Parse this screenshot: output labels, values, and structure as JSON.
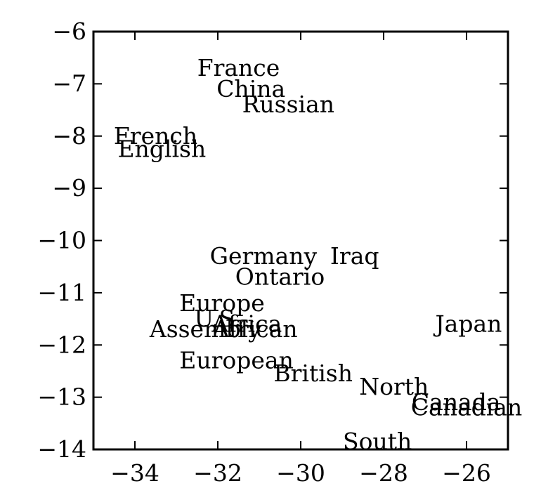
{
  "chart_data": {
    "type": "scatter",
    "title": "",
    "xlabel": "",
    "ylabel": "",
    "xlim": [
      -35,
      -25
    ],
    "ylim": [
      -14,
      -6
    ],
    "xticks": [
      -34,
      -32,
      -30,
      -28,
      -26
    ],
    "yticks": [
      -6,
      -7,
      -8,
      -9,
      -10,
      -11,
      -12,
      -13,
      -14
    ],
    "xtick_labels": [
      "−34",
      "−32",
      "−30",
      "−28",
      "−26"
    ],
    "ytick_labels": [
      "−6",
      "−7",
      "−8",
      "−9",
      "−10",
      "−11",
      "−12",
      "−13",
      "−14"
    ],
    "grid": false,
    "points": [
      {
        "label": "France",
        "x": -31.5,
        "y": -6.7
      },
      {
        "label": "China",
        "x": -31.2,
        "y": -7.1
      },
      {
        "label": "Russian",
        "x": -30.3,
        "y": -7.4
      },
      {
        "label": "French",
        "x": -33.5,
        "y": -8.0
      },
      {
        "label": "English",
        "x": -33.35,
        "y": -8.25
      },
      {
        "label": "Germany",
        "x": -30.9,
        "y": -10.3
      },
      {
        "label": "Iraq",
        "x": -28.7,
        "y": -10.3
      },
      {
        "label": "Ontario",
        "x": -30.5,
        "y": -10.7
      },
      {
        "label": "Europe",
        "x": -31.9,
        "y": -11.2
      },
      {
        "label": "U.S.",
        "x": -32.0,
        "y": -11.5
      },
      {
        "label": "Africa",
        "x": -31.3,
        "y": -11.6
      },
      {
        "label": "Assembly",
        "x": -32.3,
        "y": -11.7
      },
      {
        "label": "African",
        "x": -31.1,
        "y": -11.7
      },
      {
        "label": "Japan",
        "x": -25.95,
        "y": -11.6
      },
      {
        "label": "European",
        "x": -31.55,
        "y": -12.3
      },
      {
        "label": "British",
        "x": -29.7,
        "y": -12.55
      },
      {
        "label": "North",
        "x": -27.75,
        "y": -12.8
      },
      {
        "label": "Canada",
        "x": -26.25,
        "y": -13.1
      },
      {
        "label": "Canadian",
        "x": -26.0,
        "y": -13.2
      },
      {
        "label": "South",
        "x": -28.15,
        "y": -13.85
      }
    ]
  }
}
